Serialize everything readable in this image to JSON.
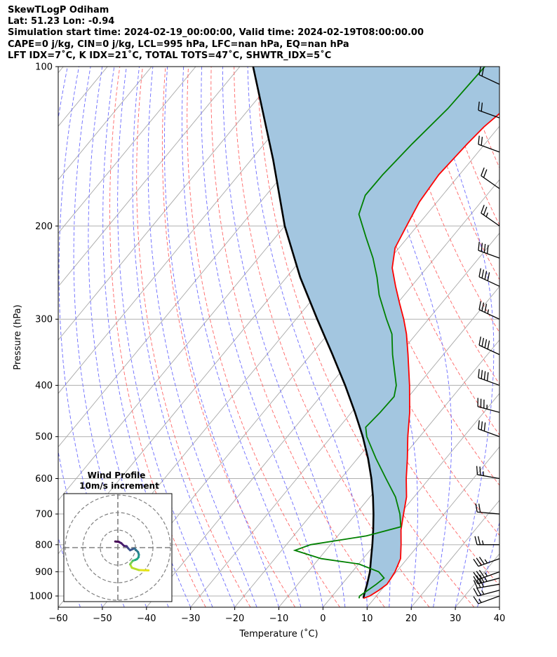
{
  "header": {
    "title": "SkewTLogP Odiham",
    "location": "Lat: 51.23   Lon: -0.94",
    "times": "Simulation start time: 2024-02-19_00:00:00, Valid time: 2024-02-19T08:00:00.00",
    "indices1": "CAPE=0 j/kg, CIN=0 j/kg, LCL=995 hPa, LFC=nan hPa, EQ=nan hPa",
    "indices2": "LFT IDX=7˚C, K IDX=21˚C, TOTAL TOTS=47˚C, SHWTR_IDX=5˚C"
  },
  "chart_data": {
    "type": "skewt",
    "xlabel": "Temperature (˚C)",
    "ylabel": "Pressure (hPa)",
    "xlim": [
      -60,
      40
    ],
    "ylim": [
      1050,
      100
    ],
    "x_ticks": [
      -60,
      -50,
      -40,
      -30,
      -20,
      -10,
      0,
      10,
      20,
      30,
      40
    ],
    "x_tick_labels": [
      "−60",
      "−50",
      "−40",
      "−30",
      "−20",
      "−10",
      "0",
      "10",
      "20",
      "30",
      "40"
    ],
    "p_ticks": [
      1000,
      900,
      800,
      700,
      600,
      500,
      400,
      300,
      200,
      100
    ],
    "log_pressure": true,
    "grid": true,
    "series": [
      {
        "name": "",
        "color": "#ff0000",
        "kind": "temperature",
        "points": [
          [
            1010,
            7.5
          ],
          [
            1000,
            8.5
          ],
          [
            975,
            9.5
          ],
          [
            950,
            10.2
          ],
          [
            925,
            10.0
          ],
          [
            900,
            9.7
          ],
          [
            850,
            8.5
          ],
          [
            800,
            6.0
          ],
          [
            750,
            3.2
          ],
          [
            700,
            0.8
          ],
          [
            650,
            -1.7
          ],
          [
            600,
            -5.2
          ],
          [
            550,
            -8.7
          ],
          [
            500,
            -12.7
          ],
          [
            450,
            -16.8
          ],
          [
            400,
            -21.9
          ],
          [
            350,
            -28.0
          ],
          [
            320,
            -32.2
          ],
          [
            300,
            -35.6
          ],
          [
            280,
            -39.5
          ],
          [
            260,
            -43.6
          ],
          [
            240,
            -47.8
          ],
          [
            220,
            -50.9
          ],
          [
            200,
            -52.4
          ],
          [
            180,
            -54.0
          ],
          [
            160,
            -54.7
          ],
          [
            140,
            -54.0
          ],
          [
            130,
            -53.4
          ],
          [
            120,
            -52.0
          ],
          [
            110,
            -52.6
          ],
          [
            100,
            -55.8
          ]
        ]
      },
      {
        "name": "",
        "color": "#008000",
        "kind": "dewpoint",
        "points": [
          [
            1010,
            6.5
          ],
          [
            1000,
            6.2
          ],
          [
            975,
            7.0
          ],
          [
            950,
            7.8
          ],
          [
            925,
            8.4
          ],
          [
            900,
            6.0
          ],
          [
            870,
            0.0
          ],
          [
            850,
            -9.5
          ],
          [
            820,
            -17.0
          ],
          [
            800,
            -14.5
          ],
          [
            770,
            -3.5
          ],
          [
            740,
            2.6
          ],
          [
            700,
            0.0
          ],
          [
            650,
            -4.2
          ],
          [
            600,
            -9.8
          ],
          [
            550,
            -15.8
          ],
          [
            500,
            -22.0
          ],
          [
            480,
            -24.0
          ],
          [
            450,
            -23.5
          ],
          [
            420,
            -23.3
          ],
          [
            400,
            -24.9
          ],
          [
            350,
            -31.5
          ],
          [
            320,
            -35.5
          ],
          [
            300,
            -39.5
          ],
          [
            270,
            -45.7
          ],
          [
            250,
            -49.5
          ],
          [
            230,
            -54.0
          ],
          [
            210,
            -59.5
          ],
          [
            190,
            -65.4
          ],
          [
            175,
            -67.5
          ],
          [
            160,
            -67.4
          ],
          [
            140,
            -66.5
          ],
          [
            120,
            -65.0
          ],
          [
            100,
            -64.5
          ]
        ]
      },
      {
        "name": "",
        "color": "#000000",
        "kind": "parcel",
        "points": [
          [
            1010,
            7.5
          ],
          [
            995,
            7.0
          ],
          [
            950,
            5.7
          ],
          [
            900,
            4.0
          ],
          [
            850,
            1.8
          ],
          [
            800,
            -0.5
          ],
          [
            750,
            -3.1
          ],
          [
            700,
            -6.0
          ],
          [
            650,
            -9.3
          ],
          [
            600,
            -13.1
          ],
          [
            550,
            -17.6
          ],
          [
            500,
            -22.9
          ],
          [
            450,
            -29.2
          ],
          [
            400,
            -36.5
          ],
          [
            350,
            -45.1
          ],
          [
            300,
            -55.2
          ],
          [
            250,
            -66.9
          ],
          [
            200,
            -80.0
          ],
          [
            150,
            -95.0
          ],
          [
            100,
            -117.0
          ]
        ]
      }
    ],
    "wind_barbs": [
      {
        "p": 1000,
        "speed_kt": 15,
        "dir_deg": 250
      },
      {
        "p": 975,
        "speed_kt": 25,
        "dir_deg": 255
      },
      {
        "p": 950,
        "speed_kt": 30,
        "dir_deg": 260
      },
      {
        "p": 925,
        "speed_kt": 35,
        "dir_deg": 255
      },
      {
        "p": 900,
        "speed_kt": 35,
        "dir_deg": 250
      },
      {
        "p": 850,
        "speed_kt": 35,
        "dir_deg": 250
      },
      {
        "p": 800,
        "speed_kt": 25,
        "dir_deg": 270
      },
      {
        "p": 700,
        "speed_kt": 20,
        "dir_deg": 275
      },
      {
        "p": 600,
        "speed_kt": 25,
        "dir_deg": 280
      },
      {
        "p": 500,
        "speed_kt": 30,
        "dir_deg": 290
      },
      {
        "p": 450,
        "speed_kt": 35,
        "dir_deg": 285
      },
      {
        "p": 400,
        "speed_kt": 40,
        "dir_deg": 290
      },
      {
        "p": 350,
        "speed_kt": 40,
        "dir_deg": 295
      },
      {
        "p": 300,
        "speed_kt": 35,
        "dir_deg": 295
      },
      {
        "p": 260,
        "speed_kt": 40,
        "dir_deg": 295
      },
      {
        "p": 230,
        "speed_kt": 40,
        "dir_deg": 290
      },
      {
        "p": 200,
        "speed_kt": 25,
        "dir_deg": 305
      },
      {
        "p": 170,
        "speed_kt": 20,
        "dir_deg": 305
      },
      {
        "p": 145,
        "speed_kt": 20,
        "dir_deg": 290
      },
      {
        "p": 125,
        "speed_kt": 20,
        "dir_deg": 290
      },
      {
        "p": 108,
        "speed_kt": 20,
        "dir_deg": 295
      }
    ],
    "hodograph": {
      "title": "Wind Profile",
      "subtitle": "10m/s increment",
      "ring_step_ms": 10,
      "rings": 3,
      "points": [
        [
          17.5,
          -13.0
        ],
        [
          12.0,
          -12.8
        ],
        [
          8.0,
          -11.5
        ],
        [
          7.0,
          -9.5
        ],
        [
          8.5,
          -7.5
        ],
        [
          10.0,
          -7.0
        ],
        [
          11.0,
          -6.5
        ],
        [
          11.8,
          -5.5
        ],
        [
          12.0,
          -4.0
        ],
        [
          11.5,
          -2.5
        ],
        [
          10.5,
          -1.5
        ],
        [
          9.5,
          -0.5
        ],
        [
          8.5,
          -0.8
        ],
        [
          7.0,
          -1.5
        ],
        [
          6.0,
          -0.5
        ],
        [
          5.0,
          0.8
        ],
        [
          3.5,
          1.0
        ],
        [
          2.0,
          2.5
        ],
        [
          0.5,
          3.3
        ],
        [
          -1.5,
          3.5
        ]
      ]
    }
  }
}
